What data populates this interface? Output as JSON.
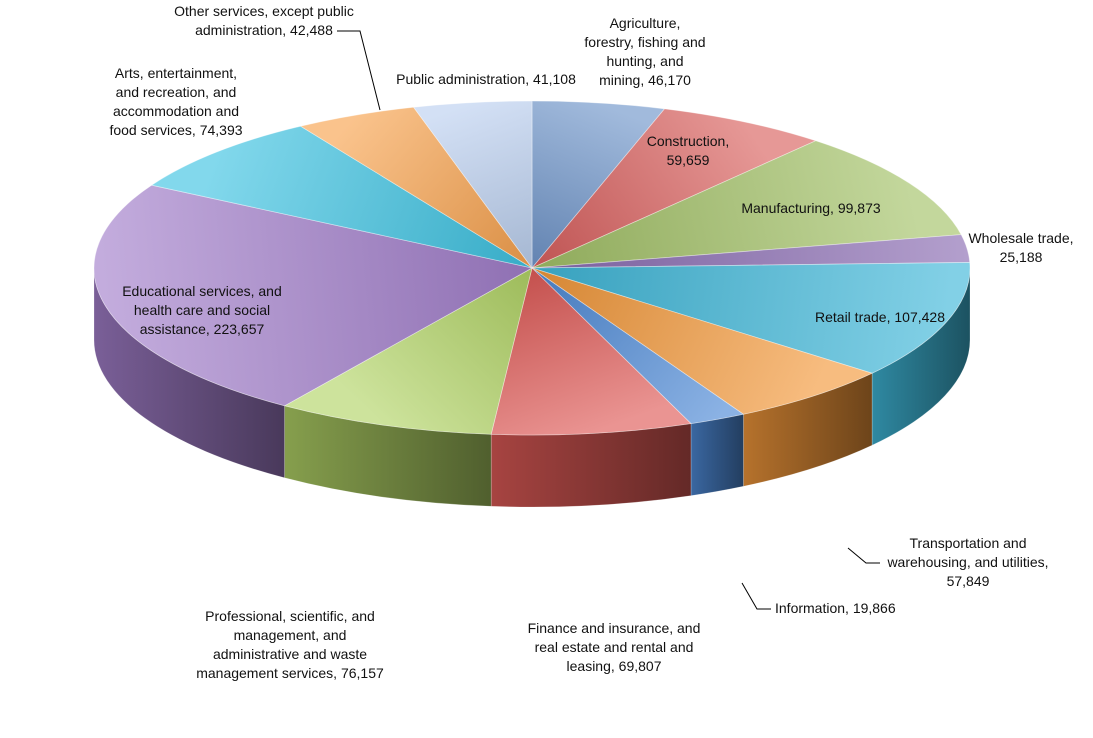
{
  "chart_data": {
    "type": "pie",
    "style": "3d",
    "title": "",
    "slices": [
      {
        "label": "Agriculture, forestry, fishing and hunting, and mining",
        "value": 46170,
        "color": "#6f95c9",
        "label_lines": [
          "Agriculture,",
          "forestry, fishing and",
          "hunting, and",
          "mining, 46,170"
        ]
      },
      {
        "label": "Construction",
        "value": 59659,
        "color": "#d9605e",
        "label_lines": [
          "Construction,",
          "59,659"
        ]
      },
      {
        "label": "Manufacturing",
        "value": 99873,
        "color": "#a2c167",
        "label_lines": [
          "Manufacturing, 99,873"
        ]
      },
      {
        "label": "Wholesale trade",
        "value": 25188,
        "color": "#8a6cb2",
        "label_lines": [
          "Wholesale trade,",
          "25,188"
        ]
      },
      {
        "label": "Retail trade",
        "value": 107428,
        "color": "#3fb7d8",
        "label_lines": [
          "Retail trade, 107,428"
        ]
      },
      {
        "label": "Transportation and warehousing, and utilities",
        "value": 57849,
        "color": "#f2983a",
        "label_lines": [
          "Transportation and",
          "warehousing, and utilities,",
          "57,849"
        ]
      },
      {
        "label": "Information",
        "value": 19866,
        "color": "#4d89d6",
        "label_lines": [
          "Information, 19,866"
        ]
      },
      {
        "label": "Finance and insurance, and real estate and rental and leasing",
        "value": 69807,
        "color": "#df5b57",
        "label_lines": [
          "Finance and insurance, and",
          "real estate and rental and",
          "leasing, 69,807"
        ]
      },
      {
        "label": "Professional, scientific, and management, and administrative and waste management services",
        "value": 76157,
        "color": "#b2d466",
        "label_lines": [
          "Professional, scientific, and",
          "management, and",
          "administrative and waste",
          "management services, 76,157"
        ]
      },
      {
        "label": "Educational services, and health care and social assistance",
        "value": 223657,
        "color": "#a27fcb",
        "label_lines": [
          "Educational services, and",
          "health care and social",
          "assistance, 223,657"
        ]
      },
      {
        "label": "Arts, entertainment, and recreation, and accommodation and food services",
        "value": 74393,
        "color": "#3fc3e2",
        "label_lines": [
          "Arts, entertainment,",
          "and recreation, and",
          "accommodation and",
          "food services, 74,393"
        ]
      },
      {
        "label": "Other services, except public administration",
        "value": 42488,
        "color": "#f8a24e",
        "label_lines": [
          "Other services, except public",
          "administration, 42,488"
        ]
      },
      {
        "label": "Public administration",
        "value": 41108,
        "color": "#bcd0ef",
        "label_lines": [
          "Public administration, 41,108"
        ]
      }
    ]
  }
}
